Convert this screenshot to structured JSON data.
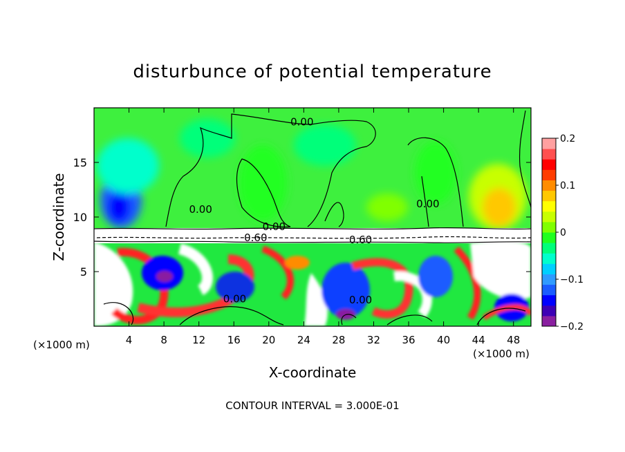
{
  "chart_data": {
    "type": "heatmap",
    "title": "disturbunce of potential temperature",
    "xlabel": "X-coordinate",
    "ylabel": "Z-coordinate",
    "x_unit_label_left": "(×1000 m)",
    "x_unit_label_right": "(×1000 m)",
    "footer": "CONTOUR INTERVAL = 3.000E-01",
    "xlim": [
      0,
      50
    ],
    "ylim": [
      0,
      20
    ],
    "x_ticks": [
      4,
      8,
      12,
      16,
      20,
      24,
      28,
      32,
      36,
      40,
      44,
      48
    ],
    "y_ticks": [
      5,
      10,
      15
    ],
    "colorbar": {
      "min": -0.2,
      "max": 0.2,
      "tick_values": [
        0.2,
        0.1,
        0,
        -0.1,
        -0.2
      ],
      "tick_labels": [
        "0.2",
        "0.1",
        "0",
        "−0.1",
        "−0.2"
      ],
      "colors": [
        "#8a1fa0",
        "#3d00b5",
        "#0000ff",
        "#1a5cff",
        "#2f9bff",
        "#00d0ff",
        "#00ffcc",
        "#00ff7a",
        "#20ff20",
        "#80ff00",
        "#c8ff00",
        "#ffff00",
        "#ffc800",
        "#ff8c00",
        "#ff3c00",
        "#ff0000",
        "#ff5050",
        "#ffa0a0"
      ]
    },
    "contour_labels": [
      {
        "text": "0.00",
        "x": 23.8,
        "z": 18.7
      },
      {
        "text": "0.00",
        "x": 20.6,
        "z": 9.1
      },
      {
        "text": "0.00",
        "x": 12.2,
        "z": 10.7
      },
      {
        "text": "0.00",
        "x": 38.2,
        "z": 11.2
      },
      {
        "text": "0.60",
        "x": 18.5,
        "z": 8.1
      },
      {
        "text": "0.60",
        "x": 30.5,
        "z": 7.9
      },
      {
        "text": "0.00",
        "x": 16.1,
        "z": 2.5
      },
      {
        "text": "0.00",
        "x": 30.5,
        "z": 2.4
      }
    ]
  }
}
